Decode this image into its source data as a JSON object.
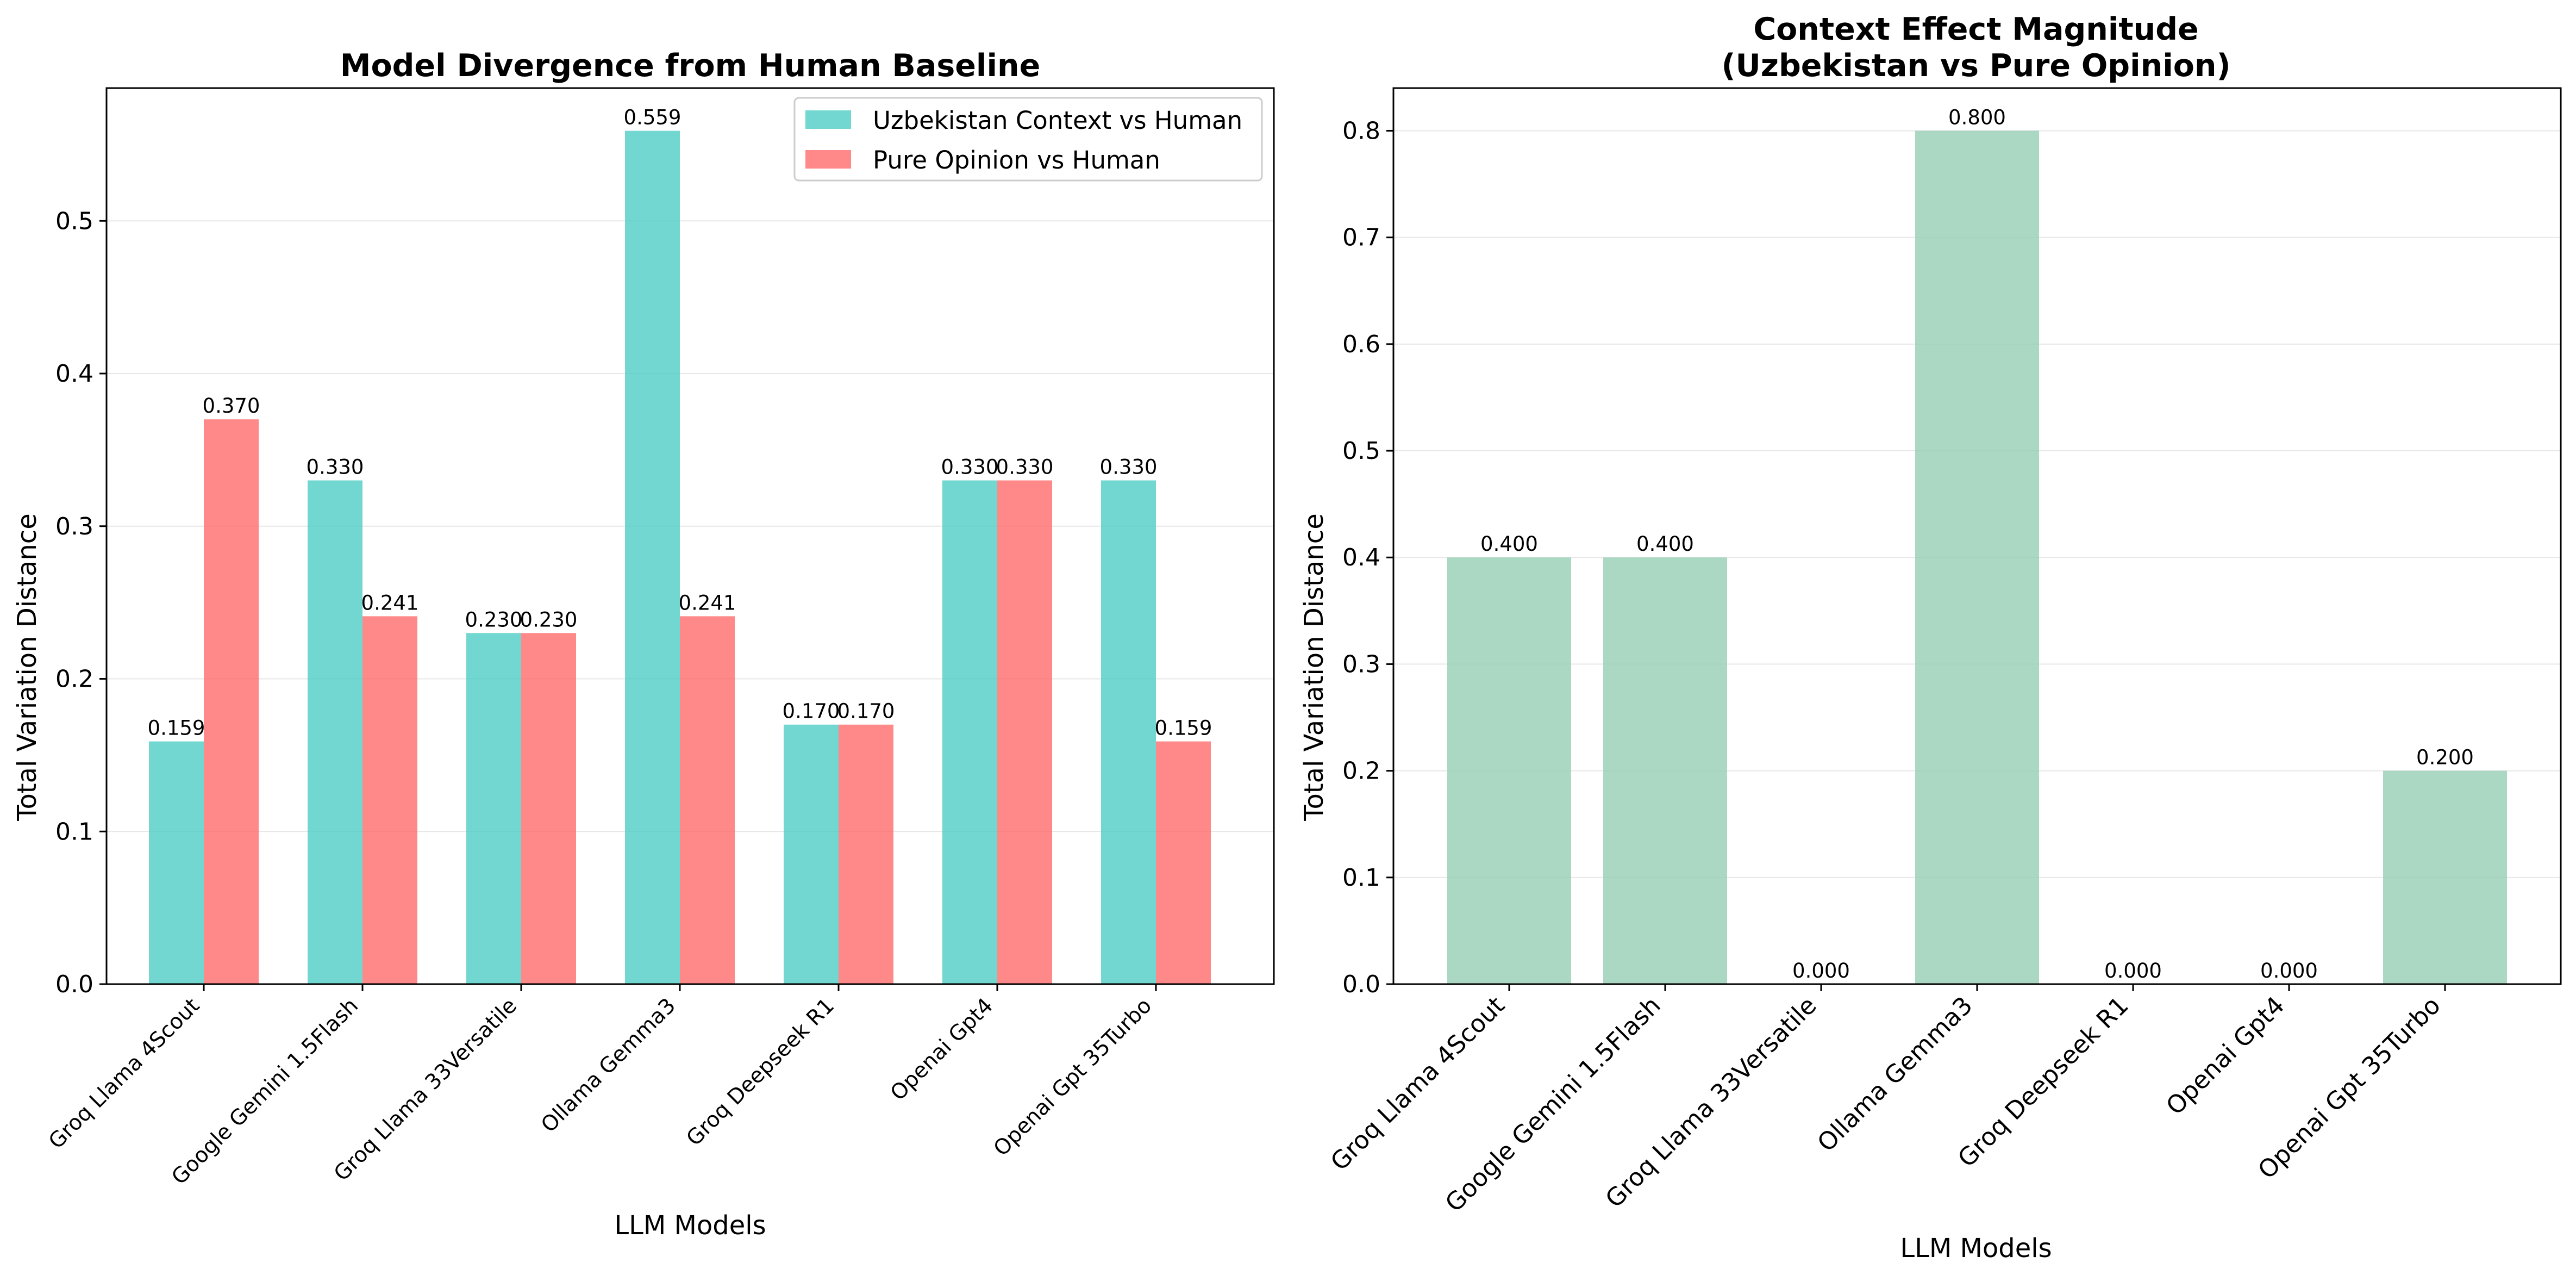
{
  "chart_data": [
    {
      "type": "bar",
      "title": "Model Divergence from Human Baseline",
      "xlabel": "LLM Models",
      "ylabel": "Total Variation Distance",
      "categories": [
        "Groq Llama 4Scout",
        "Google Gemini 1.5Flash",
        "Groq Llama 33Versatile",
        "Ollama Gemma3",
        "Groq Deepseek R1",
        "Openai Gpt4",
        "Openai Gpt 35Turbo"
      ],
      "series": [
        {
          "name": "Uzbekistan Context vs Human",
          "color": "#4ecdc4",
          "values": [
            0.159,
            0.33,
            0.23,
            0.559,
            0.17,
            0.33,
            0.33
          ],
          "labels": [
            "0.159",
            "0.330",
            "0.230",
            "0.559",
            "0.170",
            "0.330",
            "0.330"
          ]
        },
        {
          "name": "Pure Opinion vs Human",
          "color": "#ff6b6b",
          "values": [
            0.37,
            0.241,
            0.23,
            0.241,
            0.17,
            0.33,
            0.159
          ],
          "labels": [
            "0.370",
            "0.241",
            "0.230",
            "0.241",
            "0.170",
            "0.330",
            "0.159"
          ]
        }
      ],
      "ylim": [
        0,
        0.587
      ],
      "yticks": [
        "0.0",
        "0.1",
        "0.2",
        "0.3",
        "0.4",
        "0.5"
      ],
      "grid": "horizontal",
      "legend": "top-right"
    },
    {
      "type": "bar",
      "title": "Context Effect Magnitude",
      "subtitle": "(Uzbekistan vs Pure Opinion)",
      "xlabel": "LLM Models",
      "ylabel": "Total Variation Distance",
      "categories": [
        "Groq Llama 4Scout",
        "Google Gemini 1.5Flash",
        "Groq Llama 33Versatile",
        "Ollama Gemma3",
        "Groq Deepseek R1",
        "Openai Gpt4",
        "Openai Gpt 35Turbo"
      ],
      "series": [
        {
          "color": "#96ceb4",
          "values": [
            0.4,
            0.4,
            0.0,
            0.8,
            0.0,
            0.0,
            0.2
          ],
          "labels": [
            "0.400",
            "0.400",
            "0.000",
            "0.800",
            "0.000",
            "0.000",
            "0.200"
          ]
        }
      ],
      "ylim": [
        0,
        0.84
      ],
      "yticks": [
        "0.0",
        "0.1",
        "0.2",
        "0.3",
        "0.4",
        "0.5",
        "0.6",
        "0.7",
        "0.8"
      ],
      "grid": "horizontal"
    }
  ]
}
